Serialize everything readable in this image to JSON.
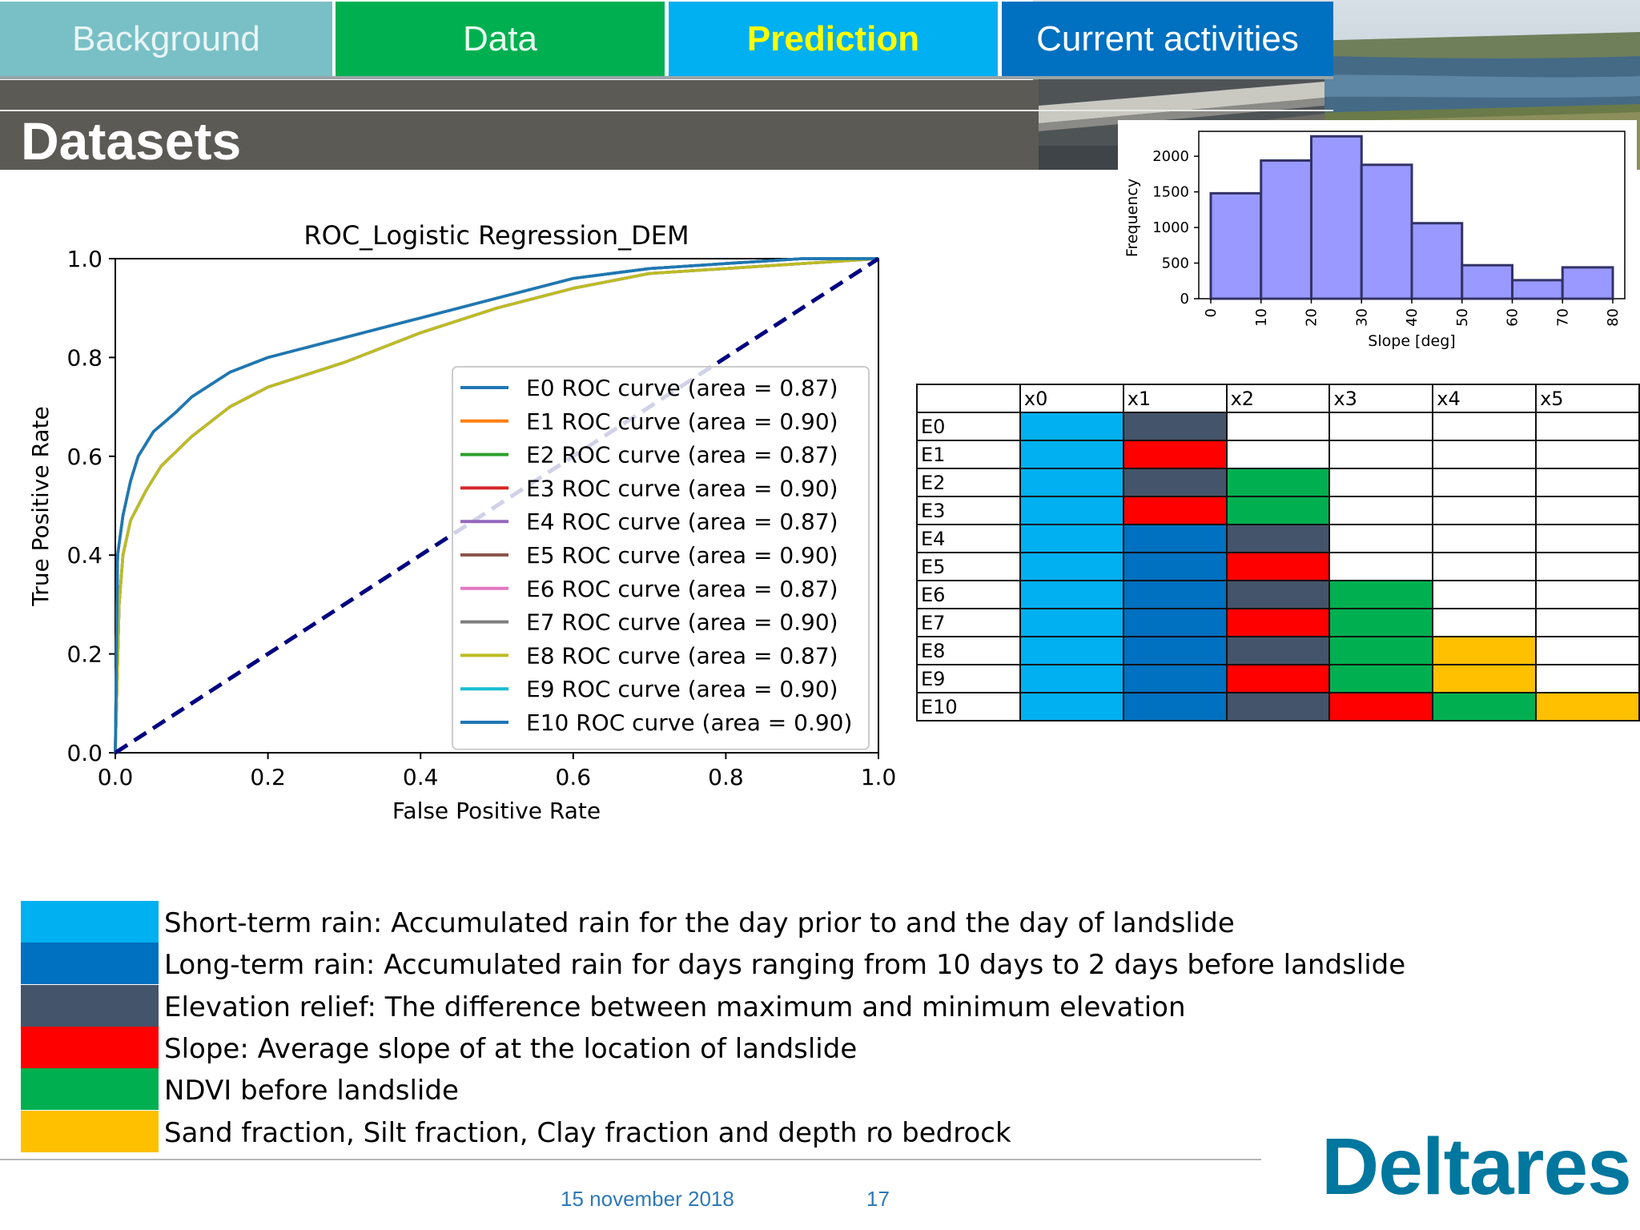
{
  "tabs": [
    {
      "label": "Background"
    },
    {
      "label": "Data"
    },
    {
      "label": "Prediction"
    },
    {
      "label": "Current activities"
    }
  ],
  "page_title": "Datasets",
  "colors": {
    "short_term_rain": "#00b0f0",
    "long_term_rain": "#0070c0",
    "elevation_relief": "#44546a",
    "slope": "#ff0000",
    "ndvi": "#00b050",
    "soil": "#ffc000"
  },
  "chart_data": [
    {
      "type": "line",
      "title": "ROC_Logistic Regression_DEM",
      "xlabel": "False Positive Rate",
      "ylabel": "True Positive Rate",
      "xlim": [
        0,
        1
      ],
      "ylim": [
        0,
        1
      ],
      "xticks": [
        "0.0",
        "0.2",
        "0.4",
        "0.6",
        "0.8",
        "1.0"
      ],
      "yticks": [
        "0.0",
        "0.2",
        "0.4",
        "0.6",
        "0.8",
        "1.0"
      ],
      "grid": false,
      "legend_position": "lower-right",
      "diagonal": {
        "x": [
          0,
          1
        ],
        "y": [
          0,
          1
        ],
        "color": "#000080",
        "style": "dashed"
      },
      "series": [
        {
          "name": "E0 ROC curve (area = 0.87)",
          "color": "#1f77b4",
          "x": [
            0,
            0.005,
            0.01,
            0.02,
            0.04,
            0.06,
            0.08,
            0.1,
            0.15,
            0.2,
            0.3,
            0.4,
            0.5,
            0.6,
            0.7,
            0.8,
            0.9,
            1.0
          ],
          "y": [
            0,
            0.3,
            0.4,
            0.47,
            0.53,
            0.58,
            0.61,
            0.64,
            0.7,
            0.74,
            0.79,
            0.85,
            0.9,
            0.94,
            0.97,
            0.98,
            0.99,
            1.0
          ]
        },
        {
          "name": "E1 ROC curve (area = 0.90)",
          "color": "#ff7f0e",
          "x": [
            0,
            0.003,
            0.01,
            0.02,
            0.03,
            0.05,
            0.08,
            0.1,
            0.15,
            0.2,
            0.3,
            0.4,
            0.5,
            0.6,
            0.7,
            0.8,
            0.9,
            1.0
          ],
          "y": [
            0,
            0.4,
            0.48,
            0.55,
            0.6,
            0.65,
            0.69,
            0.72,
            0.77,
            0.8,
            0.84,
            0.88,
            0.92,
            0.96,
            0.98,
            0.99,
            1.0,
            1.0
          ]
        },
        {
          "name": "E2 ROC curve (area = 0.87)",
          "color": "#2ca02c",
          "x": [
            0,
            0.005,
            0.01,
            0.02,
            0.04,
            0.06,
            0.08,
            0.1,
            0.15,
            0.2,
            0.3,
            0.4,
            0.5,
            0.6,
            0.7,
            0.8,
            0.9,
            1.0
          ],
          "y": [
            0,
            0.3,
            0.4,
            0.47,
            0.53,
            0.58,
            0.61,
            0.64,
            0.7,
            0.74,
            0.79,
            0.85,
            0.9,
            0.94,
            0.97,
            0.98,
            0.99,
            1.0
          ]
        },
        {
          "name": "E3 ROC curve (area = 0.90)",
          "color": "#d62728",
          "x": [
            0,
            0.003,
            0.01,
            0.02,
            0.03,
            0.05,
            0.08,
            0.1,
            0.15,
            0.2,
            0.3,
            0.4,
            0.5,
            0.6,
            0.7,
            0.8,
            0.9,
            1.0
          ],
          "y": [
            0,
            0.4,
            0.48,
            0.55,
            0.6,
            0.65,
            0.69,
            0.72,
            0.77,
            0.8,
            0.84,
            0.88,
            0.92,
            0.96,
            0.98,
            0.99,
            1.0,
            1.0
          ]
        },
        {
          "name": "E4 ROC curve (area = 0.87)",
          "color": "#9467bd",
          "x": [
            0,
            0.005,
            0.01,
            0.02,
            0.04,
            0.06,
            0.08,
            0.1,
            0.15,
            0.2,
            0.3,
            0.4,
            0.5,
            0.6,
            0.7,
            0.8,
            0.9,
            1.0
          ],
          "y": [
            0,
            0.3,
            0.4,
            0.47,
            0.53,
            0.58,
            0.61,
            0.64,
            0.7,
            0.74,
            0.79,
            0.85,
            0.9,
            0.94,
            0.97,
            0.98,
            0.99,
            1.0
          ]
        },
        {
          "name": "E5 ROC curve (area = 0.90)",
          "color": "#8c564b",
          "x": [
            0,
            0.003,
            0.01,
            0.02,
            0.03,
            0.05,
            0.08,
            0.1,
            0.15,
            0.2,
            0.3,
            0.4,
            0.5,
            0.6,
            0.7,
            0.8,
            0.9,
            1.0
          ],
          "y": [
            0,
            0.4,
            0.48,
            0.55,
            0.6,
            0.65,
            0.69,
            0.72,
            0.77,
            0.8,
            0.84,
            0.88,
            0.92,
            0.96,
            0.98,
            0.99,
            1.0,
            1.0
          ]
        },
        {
          "name": "E6 ROC curve (area = 0.87)",
          "color": "#e377c2",
          "x": [
            0,
            0.005,
            0.01,
            0.02,
            0.04,
            0.06,
            0.08,
            0.1,
            0.15,
            0.2,
            0.3,
            0.4,
            0.5,
            0.6,
            0.7,
            0.8,
            0.9,
            1.0
          ],
          "y": [
            0,
            0.3,
            0.4,
            0.47,
            0.53,
            0.58,
            0.61,
            0.64,
            0.7,
            0.74,
            0.79,
            0.85,
            0.9,
            0.94,
            0.97,
            0.98,
            0.99,
            1.0
          ]
        },
        {
          "name": "E7 ROC curve (area = 0.90)",
          "color": "#7f7f7f",
          "x": [
            0,
            0.003,
            0.01,
            0.02,
            0.03,
            0.05,
            0.08,
            0.1,
            0.15,
            0.2,
            0.3,
            0.4,
            0.5,
            0.6,
            0.7,
            0.8,
            0.9,
            1.0
          ],
          "y": [
            0,
            0.4,
            0.48,
            0.55,
            0.6,
            0.65,
            0.69,
            0.72,
            0.77,
            0.8,
            0.84,
            0.88,
            0.92,
            0.96,
            0.98,
            0.99,
            1.0,
            1.0
          ]
        },
        {
          "name": "E8 ROC curve (area = 0.87)",
          "color": "#bcbd22",
          "x": [
            0,
            0.005,
            0.01,
            0.02,
            0.04,
            0.06,
            0.08,
            0.1,
            0.15,
            0.2,
            0.3,
            0.4,
            0.5,
            0.6,
            0.7,
            0.8,
            0.9,
            1.0
          ],
          "y": [
            0,
            0.3,
            0.4,
            0.47,
            0.53,
            0.58,
            0.61,
            0.64,
            0.7,
            0.74,
            0.79,
            0.85,
            0.9,
            0.94,
            0.97,
            0.98,
            0.99,
            1.0
          ]
        },
        {
          "name": "E9 ROC curve (area = 0.90)",
          "color": "#17becf",
          "x": [
            0,
            0.003,
            0.01,
            0.02,
            0.03,
            0.05,
            0.08,
            0.1,
            0.15,
            0.2,
            0.3,
            0.4,
            0.5,
            0.6,
            0.7,
            0.8,
            0.9,
            1.0
          ],
          "y": [
            0,
            0.4,
            0.48,
            0.55,
            0.6,
            0.65,
            0.69,
            0.72,
            0.77,
            0.8,
            0.84,
            0.88,
            0.92,
            0.96,
            0.98,
            0.99,
            1.0,
            1.0
          ]
        },
        {
          "name": "E10 ROC curve (area = 0.90)",
          "color": "#1f77b4",
          "x": [
            0,
            0.003,
            0.01,
            0.02,
            0.03,
            0.05,
            0.08,
            0.1,
            0.15,
            0.2,
            0.3,
            0.4,
            0.5,
            0.6,
            0.7,
            0.8,
            0.9,
            1.0
          ],
          "y": [
            0,
            0.4,
            0.48,
            0.55,
            0.6,
            0.65,
            0.69,
            0.72,
            0.77,
            0.8,
            0.84,
            0.88,
            0.92,
            0.96,
            0.98,
            0.99,
            1.0,
            1.0
          ]
        }
      ]
    },
    {
      "type": "bar",
      "title": "",
      "xlabel": "Slope [deg]",
      "ylabel": "Frequency",
      "bin_edges": [
        0,
        10,
        20,
        30,
        40,
        50,
        60,
        70,
        80
      ],
      "values": [
        1480,
        1940,
        2280,
        1880,
        1060,
        470,
        260,
        440
      ],
      "xticks": [
        "0",
        "10",
        "20",
        "30",
        "40",
        "50",
        "60",
        "70",
        "80"
      ],
      "yticks": [
        "0",
        "500",
        "1000",
        "1500",
        "2000"
      ],
      "ylim": [
        0,
        2350
      ],
      "bar_color": "#9999ff",
      "edge_color": "#333366"
    }
  ],
  "table": {
    "columns": [
      "x0",
      "x1",
      "x2",
      "x3",
      "x4",
      "x5"
    ],
    "rows": [
      {
        "label": "E0",
        "cells": [
          "short_term_rain",
          "elevation_relief",
          "",
          "",
          "",
          ""
        ]
      },
      {
        "label": "E1",
        "cells": [
          "short_term_rain",
          "slope",
          "",
          "",
          "",
          ""
        ]
      },
      {
        "label": "E2",
        "cells": [
          "short_term_rain",
          "elevation_relief",
          "ndvi",
          "",
          "",
          ""
        ]
      },
      {
        "label": "E3",
        "cells": [
          "short_term_rain",
          "slope",
          "ndvi",
          "",
          "",
          ""
        ]
      },
      {
        "label": "E4",
        "cells": [
          "short_term_rain",
          "long_term_rain",
          "elevation_relief",
          "",
          "",
          ""
        ]
      },
      {
        "label": "E5",
        "cells": [
          "short_term_rain",
          "long_term_rain",
          "slope",
          "",
          "",
          ""
        ]
      },
      {
        "label": "E6",
        "cells": [
          "short_term_rain",
          "long_term_rain",
          "elevation_relief",
          "ndvi",
          "",
          ""
        ]
      },
      {
        "label": "E7",
        "cells": [
          "short_term_rain",
          "long_term_rain",
          "slope",
          "ndvi",
          "",
          ""
        ]
      },
      {
        "label": "E8",
        "cells": [
          "short_term_rain",
          "long_term_rain",
          "elevation_relief",
          "ndvi",
          "soil",
          ""
        ]
      },
      {
        "label": "E9",
        "cells": [
          "short_term_rain",
          "long_term_rain",
          "slope",
          "ndvi",
          "soil",
          ""
        ]
      },
      {
        "label": "E10",
        "cells": [
          "short_term_rain",
          "long_term_rain",
          "elevation_relief",
          "slope",
          "ndvi",
          "soil"
        ]
      }
    ]
  },
  "legend": [
    {
      "key": "short_term_rain",
      "text": "Short-term rain: Accumulated rain for the day prior to and the day of landslide"
    },
    {
      "key": "long_term_rain",
      "text": "Long-term rain: Accumulated rain for days ranging from 10 days to 2 days before landslide"
    },
    {
      "key": "elevation_relief",
      "text": "Elevation relief: The difference between maximum and minimum elevation"
    },
    {
      "key": "slope",
      "text": "Slope: Average slope of at the location of landslide"
    },
    {
      "key": "ndvi",
      "text": "NDVI before landslide"
    },
    {
      "key": "soil",
      "text": "Sand fraction, Silt fraction, Clay fraction and depth ro bedrock"
    }
  ],
  "footer": {
    "date": "15 november 2018",
    "page": "17",
    "logo": "Deltares"
  }
}
